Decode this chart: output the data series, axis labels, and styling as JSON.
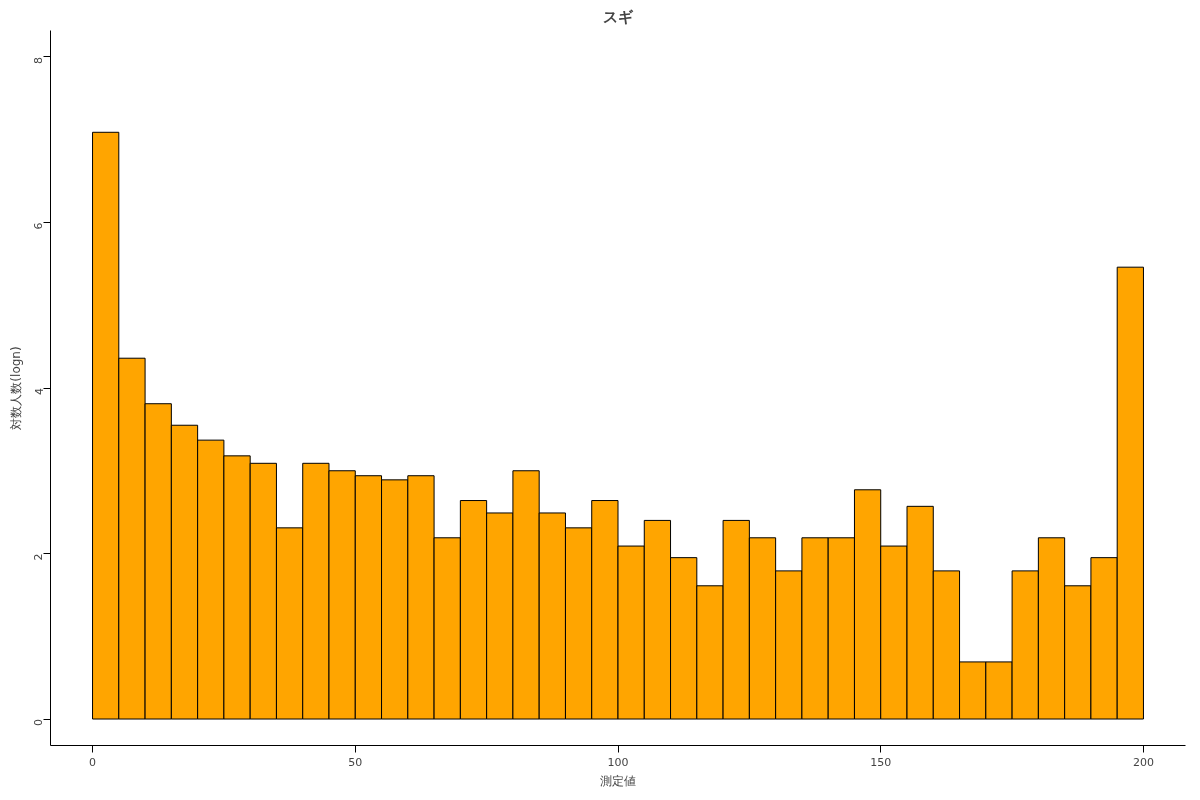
{
  "chart_data": {
    "type": "histogram",
    "title": "スギ",
    "xlabel": "測定値",
    "ylabel": "対数人数(logn)",
    "bins": [
      0,
      5,
      10,
      15,
      20,
      25,
      30,
      35,
      40,
      45,
      50,
      55,
      60,
      65,
      70,
      75,
      80,
      85,
      90,
      95,
      100,
      105,
      110,
      115,
      120,
      125,
      130,
      135,
      140,
      145,
      150,
      155,
      160,
      165,
      170,
      175,
      180,
      185,
      190,
      195,
      200
    ],
    "values": [
      7.09,
      4.36,
      3.81,
      3.55,
      3.37,
      3.18,
      3.09,
      2.31,
      3.09,
      3.0,
      2.94,
      2.89,
      2.94,
      2.19,
      2.64,
      2.49,
      3.0,
      2.49,
      2.31,
      2.64,
      2.09,
      2.4,
      1.95,
      1.61,
      2.4,
      2.19,
      1.79,
      2.19,
      2.19,
      2.77,
      2.09,
      2.57,
      1.79,
      0.69,
      0.69,
      1.79,
      2.19,
      1.61,
      1.95,
      5.46
    ],
    "color": "#ffa500",
    "xlim": [
      -8,
      208
    ],
    "ylim": [
      -0.32,
      8.32
    ],
    "xticks": [
      0,
      50,
      100,
      150,
      200
    ],
    "yticks": [
      0,
      2,
      4,
      6,
      8
    ],
    "grid": false
  }
}
